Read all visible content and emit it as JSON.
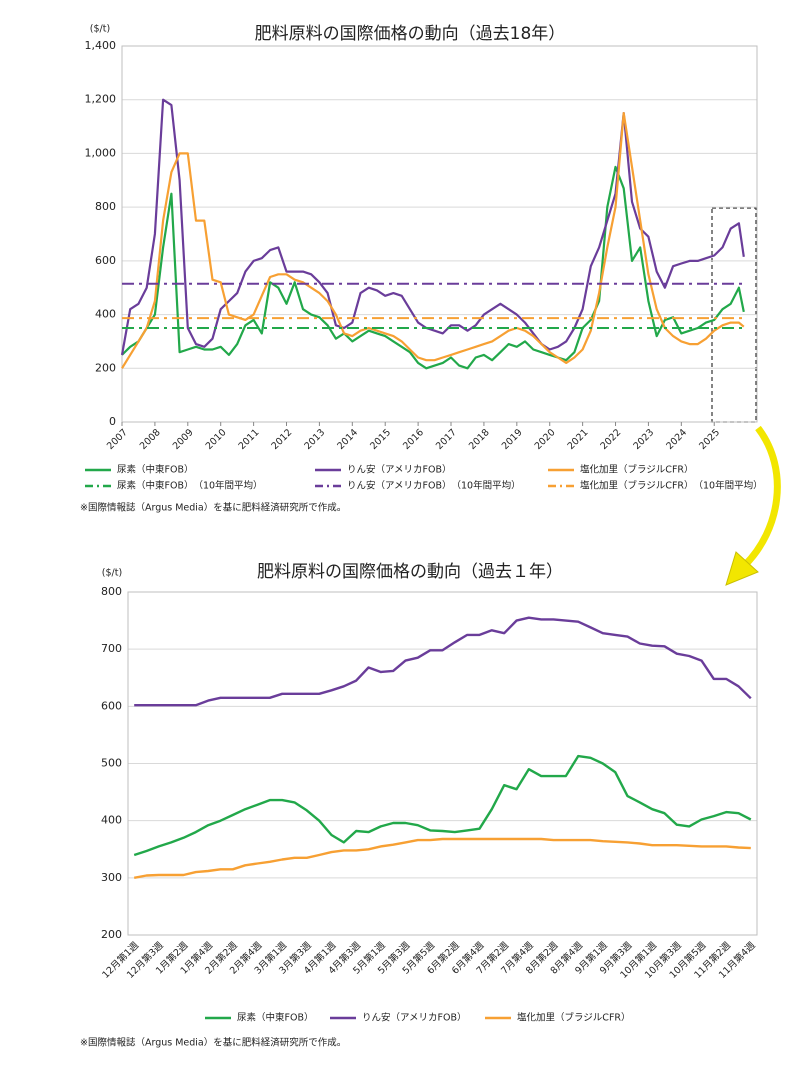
{
  "chart_data": [
    {
      "type": "line",
      "title": "肥料原料の国際価格の動向（過去18年）",
      "y_unit": "($/t)",
      "note": "※国際情報誌（Argus Media）を基に肥料経済研究所で作成。",
      "x": [
        2007,
        2007.25,
        2007.5,
        2007.75,
        2008,
        2008.25,
        2008.5,
        2008.75,
        2009,
        2009.25,
        2009.5,
        2009.75,
        2010,
        2010.25,
        2010.5,
        2010.75,
        2011,
        2011.25,
        2011.5,
        2011.75,
        2012,
        2012.25,
        2012.5,
        2012.75,
        2013,
        2013.25,
        2013.5,
        2013.75,
        2014,
        2014.25,
        2014.5,
        2014.75,
        2015,
        2015.25,
        2015.5,
        2015.75,
        2016,
        2016.25,
        2016.5,
        2016.75,
        2017,
        2017.25,
        2017.5,
        2017.75,
        2018,
        2018.25,
        2018.5,
        2018.75,
        2019,
        2019.25,
        2019.5,
        2019.75,
        2020,
        2020.25,
        2020.5,
        2020.75,
        2021,
        2021.25,
        2021.5,
        2021.75,
        2022,
        2022.25,
        2022.5,
        2022.75,
        2023,
        2023.25,
        2023.5,
        2023.75,
        2024,
        2024.25,
        2024.5,
        2024.75,
        2025,
        2025.25,
        2025.5,
        2025.75,
        2025.9
      ],
      "xlim": [
        2007,
        2026.3
      ],
      "xticks": [
        2007,
        2008,
        2009,
        2010,
        2011,
        2012,
        2013,
        2014,
        2015,
        2016,
        2017,
        2018,
        2019,
        2020,
        2021,
        2022,
        2023,
        2024,
        2025
      ],
      "ylim": [
        0,
        1400
      ],
      "yticks": [
        0,
        200,
        400,
        600,
        800,
        {
          "value": 1000,
          "label": "1,000"
        },
        {
          "value": 1200,
          "label": "1,200"
        },
        {
          "value": 1400,
          "label": "1,400"
        }
      ],
      "grid": true,
      "series": [
        {
          "name": "尿素（中東FOB）",
          "color": "#22a84a",
          "values": [
            250,
            280,
            300,
            350,
            400,
            650,
            850,
            260,
            270,
            280,
            270,
            270,
            280,
            250,
            290,
            360,
            380,
            330,
            520,
            500,
            440,
            520,
            420,
            400,
            390,
            360,
            310,
            330,
            300,
            320,
            340,
            330,
            320,
            300,
            280,
            260,
            220,
            200,
            210,
            220,
            240,
            210,
            200,
            240,
            250,
            230,
            260,
            290,
            280,
            300,
            270,
            260,
            250,
            240,
            230,
            260,
            350,
            380,
            450,
            800,
            950,
            870,
            600,
            650,
            450,
            320,
            380,
            390,
            330,
            340,
            350,
            370,
            380,
            420,
            440,
            500,
            410
          ]
        },
        {
          "name": "りん安（アメリカFOB）",
          "color": "#6a3d9a",
          "values": [
            250,
            420,
            440,
            500,
            700,
            1200,
            1180,
            900,
            350,
            290,
            280,
            310,
            420,
            450,
            480,
            560,
            600,
            610,
            640,
            650,
            560,
            560,
            560,
            550,
            520,
            480,
            360,
            350,
            370,
            480,
            500,
            490,
            470,
            480,
            470,
            420,
            370,
            350,
            340,
            330,
            360,
            360,
            340,
            360,
            400,
            420,
            440,
            420,
            400,
            370,
            330,
            290,
            270,
            280,
            300,
            350,
            420,
            580,
            650,
            750,
            850,
            1150,
            820,
            720,
            690,
            560,
            500,
            580,
            590,
            600,
            600,
            610,
            620,
            650,
            720,
            740,
            615
          ]
        },
        {
          "name": "塩化加里（ブラジルCFR）",
          "color": "#f7a033",
          "values": [
            200,
            250,
            300,
            350,
            450,
            750,
            930,
            1000,
            1000,
            750,
            750,
            530,
            520,
            400,
            390,
            380,
            400,
            470,
            540,
            550,
            550,
            530,
            520,
            500,
            480,
            450,
            400,
            330,
            320,
            340,
            350,
            340,
            330,
            320,
            300,
            270,
            240,
            230,
            230,
            240,
            250,
            260,
            270,
            280,
            290,
            300,
            320,
            340,
            350,
            340,
            320,
            290,
            260,
            240,
            220,
            240,
            270,
            340,
            480,
            650,
            800,
            1150,
            950,
            750,
            550,
            420,
            350,
            320,
            300,
            290,
            290,
            310,
            340,
            360,
            370,
            370,
            355
          ]
        },
        {
          "name": "尿素（中東FOB）　（10年間平均）",
          "color": "#22a84a",
          "style": "dash-dot",
          "x": [
            2007,
            2025.9
          ],
          "values": [
            350,
            350
          ]
        },
        {
          "name": "りん安（アメリカFOB）　（10年間平均）",
          "color": "#6a3d9a",
          "style": "dash-dot",
          "x": [
            2007,
            2025.9
          ],
          "values": [
            515,
            515
          ]
        },
        {
          "name": "塩化加里（ブラジルCFR）　（10年間平均）",
          "color": "#f7a033",
          "style": "dash-dot",
          "x": [
            2007,
            2025.9
          ],
          "values": [
            387,
            387
          ]
        }
      ]
    },
    {
      "type": "line",
      "title": "肥料原料の国際価格の動向（過去１年）",
      "y_unit": "($/t)",
      "note": "※国際情報誌（Argus Media）を基に肥料経済研究所で作成。",
      "categories": [
        "12月第1週",
        null,
        "12月第3週",
        null,
        "1月第2週",
        null,
        "1月第4週",
        null,
        "2月第2週",
        null,
        "2月第4週",
        null,
        "3月第1週",
        null,
        "3月第3週",
        null,
        "4月第1週",
        null,
        "4月第3週",
        null,
        "5月第1週",
        null,
        "5月第3週",
        null,
        "5月第5週",
        null,
        "6月第2週",
        null,
        "6月第4週",
        null,
        "7月第2週",
        null,
        "7月第4週",
        null,
        "8月第2週",
        null,
        "8月第4週",
        null,
        "9月第1週",
        null,
        "9月第3週",
        null,
        "10月第1週",
        null,
        "10月第3週",
        null,
        "10月第5週",
        null,
        "11月第2週",
        null,
        "11月第4週"
      ],
      "ylim": [
        200,
        800
      ],
      "yticks": [
        200,
        300,
        400,
        500,
        600,
        700,
        800
      ],
      "grid": true,
      "series": [
        {
          "name": "尿素（中東FOB）",
          "color": "#22a84a",
          "values": [
            340,
            347,
            355,
            362,
            370,
            380,
            392,
            400,
            410,
            420,
            428,
            436,
            436,
            432,
            418,
            400,
            375,
            362,
            382,
            380,
            390,
            396,
            396,
            392,
            383,
            382,
            380,
            383,
            386,
            420,
            462,
            455,
            490,
            478,
            478,
            478,
            513,
            510,
            500,
            485,
            443,
            432,
            420,
            413,
            393,
            390,
            402,
            408,
            415,
            413,
            402
          ]
        },
        {
          "name": "りん安（アメリカFOB）",
          "color": "#6a3d9a",
          "values": [
            602,
            602,
            602,
            602,
            602,
            602,
            610,
            615,
            615,
            615,
            615,
            615,
            622,
            622,
            622,
            622,
            628,
            635,
            645,
            668,
            660,
            662,
            680,
            685,
            698,
            698,
            712,
            725,
            725,
            733,
            728,
            750,
            755,
            752,
            752,
            750,
            748,
            738,
            728,
            725,
            722,
            710,
            706,
            705,
            692,
            688,
            680,
            648,
            648,
            635,
            614
          ]
        },
        {
          "name": "塩化加里（ブラジルCFR）",
          "color": "#f7a033",
          "values": [
            300,
            304,
            305,
            305,
            305,
            310,
            312,
            315,
            315,
            322,
            325,
            328,
            332,
            335,
            335,
            340,
            345,
            348,
            348,
            350,
            355,
            358,
            362,
            366,
            366,
            368,
            368,
            368,
            368,
            368,
            368,
            368,
            368,
            368,
            366,
            366,
            366,
            366,
            364,
            363,
            362,
            360,
            357,
            357,
            357,
            356,
            355,
            355,
            355,
            353,
            352
          ]
        }
      ]
    }
  ]
}
